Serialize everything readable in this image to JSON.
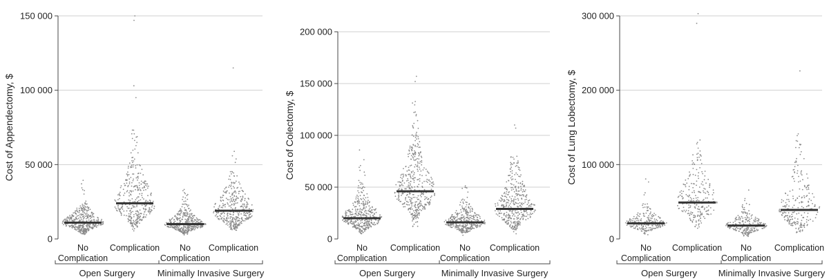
{
  "colors": {
    "point": "#8a8a8a",
    "median": "#333333",
    "grid": "#cfcfcf",
    "axis": "#444444"
  },
  "chart_data": [
    {
      "type": "scatter",
      "subtype": "beeswarm-with-median",
      "title": "",
      "ylabel": "Cost of Appendectomy, $",
      "ylim": [
        0,
        150000
      ],
      "yticks": [
        0,
        50000,
        100000,
        150000
      ],
      "ytick_labels": [
        "0",
        "50 000",
        "100 000",
        "150 000"
      ],
      "grid": "horizontal",
      "categories": [
        {
          "label": [
            "No",
            "Complication"
          ],
          "group": 0
        },
        {
          "label": [
            "Complication"
          ],
          "group": 0
        },
        {
          "label": [
            "No",
            "Complication"
          ],
          "group": 1
        },
        {
          "label": [
            "Complication"
          ],
          "group": 1
        }
      ],
      "groups": [
        "Open Surgery",
        "Minimally Invasive Surgery"
      ],
      "series": [
        {
          "median": 11000,
          "q1": 8000,
          "q3": 15000,
          "max": 43000,
          "n": 420,
          "outliers": []
        },
        {
          "median": 24000,
          "q1": 15000,
          "q3": 34000,
          "max": 78000,
          "n": 360,
          "outliers": [
            95000,
            103000,
            147000,
            150000
          ]
        },
        {
          "median": 10000,
          "q1": 7500,
          "q3": 13500,
          "max": 34000,
          "n": 420,
          "outliers": []
        },
        {
          "median": 19000,
          "q1": 12000,
          "q3": 27000,
          "max": 80000,
          "n": 380,
          "outliers": [
            115000
          ]
        }
      ]
    },
    {
      "type": "scatter",
      "subtype": "beeswarm-with-median",
      "title": "",
      "ylabel": "Cost of Colectomy, $",
      "ylim": [
        0,
        200000
      ],
      "yticks": [
        0,
        50000,
        100000,
        150000,
        200000
      ],
      "ytick_labels": [
        "0",
        "50 000",
        "100 000",
        "150 000",
        "200 000"
      ],
      "grid": "horizontal",
      "categories": [
        {
          "label": [
            "No",
            "Complication"
          ],
          "group": 0
        },
        {
          "label": [
            "Complication"
          ],
          "group": 0
        },
        {
          "label": [
            "No",
            "Complication"
          ],
          "group": 1
        },
        {
          "label": [
            "Complication"
          ],
          "group": 1
        }
      ],
      "groups": [
        "Open Surgery",
        "Minimally Invasive Surgery"
      ],
      "series": [
        {
          "median": 20000,
          "q1": 15000,
          "q3": 28000,
          "max": 88000,
          "n": 420,
          "outliers": []
        },
        {
          "median": 46000,
          "q1": 34000,
          "q3": 62000,
          "max": 133000,
          "n": 420,
          "outliers": [
            152000,
            157000
          ]
        },
        {
          "median": 16000,
          "q1": 11000,
          "q3": 22000,
          "max": 56000,
          "n": 360,
          "outliers": []
        },
        {
          "median": 29000,
          "q1": 20000,
          "q3": 42000,
          "max": 80000,
          "n": 400,
          "outliers": [
            107000,
            110000
          ]
        }
      ]
    },
    {
      "type": "scatter",
      "subtype": "beeswarm-with-median",
      "title": "",
      "ylabel": "Cost of Lung Lobectomy, $",
      "ylim": [
        0,
        300000
      ],
      "yticks": [
        0,
        100000,
        200000,
        300000
      ],
      "ytick_labels": [
        "0",
        "100 000",
        "200 000",
        "300 000"
      ],
      "grid": "horizontal",
      "categories": [
        {
          "label": [
            "No",
            "Complication"
          ],
          "group": 0
        },
        {
          "label": [
            "Complication"
          ],
          "group": 0
        },
        {
          "label": [
            "No",
            "Complication"
          ],
          "group": 1
        },
        {
          "label": [
            "Complication"
          ],
          "group": 1
        }
      ],
      "groups": [
        "Open Surgery",
        "Minimally Invasive Surgery"
      ],
      "series": [
        {
          "median": 21000,
          "q1": 16000,
          "q3": 28000,
          "max": 85000,
          "n": 220,
          "outliers": []
        },
        {
          "median": 49000,
          "q1": 35000,
          "q3": 70000,
          "max": 135000,
          "n": 230,
          "outliers": [
            290000,
            303000
          ]
        },
        {
          "median": 18000,
          "q1": 13000,
          "q3": 25000,
          "max": 82000,
          "n": 220,
          "outliers": []
        },
        {
          "median": 39000,
          "q1": 26000,
          "q3": 60000,
          "max": 160000,
          "n": 230,
          "outliers": [
            226000
          ]
        }
      ]
    }
  ]
}
